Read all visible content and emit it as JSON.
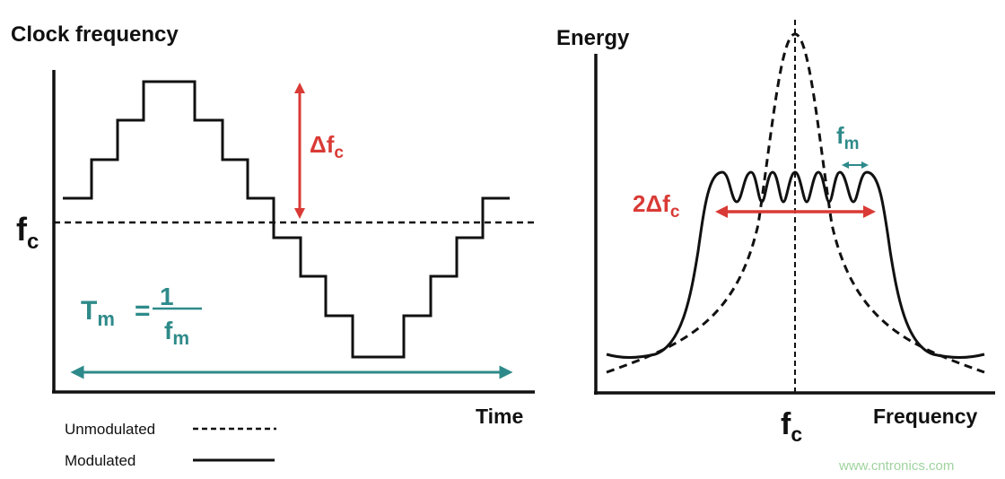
{
  "colors": {
    "axis": "#111111",
    "delta": "#d93a35",
    "modulation": "#2e8a8a",
    "watermark": "#9fd39f"
  },
  "left_panel": {
    "y_axis_label": "Clock frequency",
    "x_axis_label": "Time",
    "fc_label": {
      "main": "f",
      "sub": "c"
    },
    "delta_label": {
      "main": "Δf",
      "sub": "c"
    },
    "period_label": {
      "T": "T",
      "T_sub": "m",
      "equals": "=",
      "numerator": "1",
      "den_main": "f",
      "den_sub": "m"
    }
  },
  "right_panel": {
    "y_axis_label": "Energy",
    "x_axis_label": "Frequency",
    "fc_label": {
      "main": "f",
      "sub": "c"
    },
    "spread_label": {
      "main": "2Δf",
      "sub": "c"
    },
    "fm_label": {
      "main": "f",
      "sub": "m"
    }
  },
  "legend": {
    "items": [
      {
        "label": "Unmodulated",
        "style": "dashed"
      },
      {
        "label": "Modulated",
        "style": "solid"
      }
    ]
  },
  "watermark": "www.cntronics.com"
}
